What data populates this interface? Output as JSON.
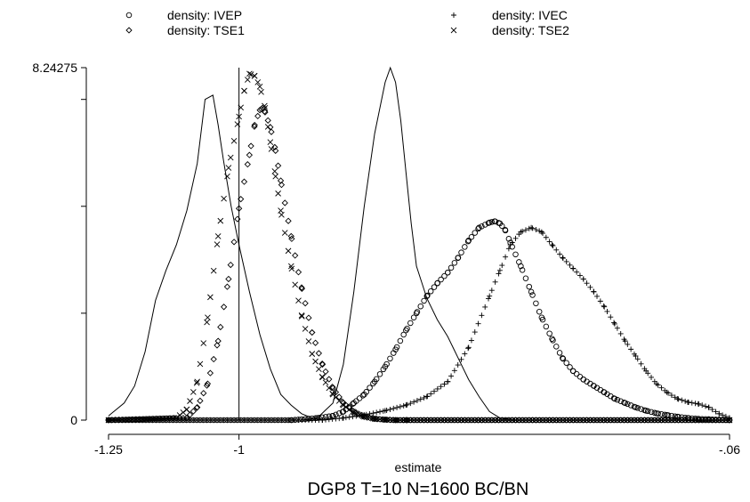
{
  "chart_data": {
    "type": "line",
    "title": "DGP8 T=10 N=1600 BC/BN",
    "xlabel": "estimate",
    "ylabel": "",
    "xlim": [
      -1.25,
      -0.06
    ],
    "ylim": [
      0,
      8.24275
    ],
    "x_tick_labels": [
      {
        "value": -1.25,
        "label": "-1.25"
      },
      {
        "value": -1.0,
        "label": "-1"
      },
      {
        "value": -0.06,
        "label": "-.06"
      }
    ],
    "y_tick_labels": [
      {
        "value": 0,
        "label": "0"
      },
      {
        "value": 8.24275,
        "label": "8.24275"
      }
    ],
    "y_minor_ticks": [
      2.5,
      5.0,
      7.5
    ],
    "reference_line_x": -1.0,
    "legend": {
      "placement": "top",
      "entries": [
        {
          "series": "IVEP",
          "label": "density: IVEP",
          "marker": "circle"
        },
        {
          "series": "IVEC",
          "label": "density: IVEC",
          "marker": "plus"
        },
        {
          "series": "TSE1",
          "label": "density: TSE1",
          "marker": "diamond"
        },
        {
          "series": "TSE2",
          "label": "density: TSE2",
          "marker": "x"
        }
      ]
    },
    "series": [
      {
        "name": "",
        "style": "line",
        "x": [
          -1.25,
          -1.22,
          -1.2,
          -1.18,
          -1.16,
          -1.14,
          -1.12,
          -1.1,
          -1.08,
          -1.065,
          -1.05,
          -1.04,
          -1.03,
          -1.015,
          -1.0,
          -0.98,
          -0.96,
          -0.94,
          -0.92,
          -0.9,
          -0.88,
          -0.86,
          -0.84
        ],
        "y": [
          0.1,
          0.4,
          0.8,
          1.6,
          2.8,
          3.5,
          4.1,
          4.9,
          6.0,
          7.5,
          7.6,
          6.9,
          6.1,
          5.0,
          4.1,
          3.0,
          2.0,
          1.2,
          0.6,
          0.35,
          0.15,
          0.05,
          0.0
        ]
      },
      {
        "name": "",
        "style": "line",
        "x": [
          -0.88,
          -0.85,
          -0.82,
          -0.8,
          -0.78,
          -0.76,
          -0.74,
          -0.72,
          -0.71,
          -0.7,
          -0.69,
          -0.68,
          -0.67,
          -0.66,
          -0.64,
          -0.62,
          -0.6,
          -0.58,
          -0.56,
          -0.54,
          -0.52,
          -0.5,
          -0.47
        ],
        "y": [
          0.0,
          0.05,
          0.4,
          1.3,
          3.0,
          5.0,
          6.7,
          7.9,
          8.24,
          7.9,
          7.0,
          5.8,
          4.6,
          3.6,
          2.85,
          2.35,
          1.95,
          1.45,
          0.95,
          0.55,
          0.2,
          0.05,
          0.0
        ]
      },
      {
        "name": "IVEP",
        "style": "circle",
        "x": [
          -1.25,
          -0.9,
          -0.85,
          -0.82,
          -0.8,
          -0.78,
          -0.76,
          -0.74,
          -0.72,
          -0.7,
          -0.68,
          -0.66,
          -0.64,
          -0.62,
          -0.6,
          -0.58,
          -0.56,
          -0.54,
          -0.52,
          -0.51,
          -0.5,
          -0.49,
          -0.48,
          -0.46,
          -0.44,
          -0.42,
          -0.4,
          -0.38,
          -0.36,
          -0.34,
          -0.32,
          -0.3,
          -0.28,
          -0.26,
          -0.24,
          -0.22,
          -0.2,
          -0.18,
          -0.16,
          -0.14,
          -0.12,
          -0.1,
          -0.08,
          -0.06
        ],
        "y": [
          0.0,
          0.0,
          0.05,
          0.1,
          0.2,
          0.4,
          0.6,
          0.9,
          1.25,
          1.65,
          2.1,
          2.5,
          2.9,
          3.2,
          3.45,
          3.8,
          4.2,
          4.5,
          4.62,
          4.65,
          4.6,
          4.45,
          4.15,
          3.6,
          3.0,
          2.4,
          1.9,
          1.45,
          1.15,
          0.95,
          0.8,
          0.65,
          0.5,
          0.4,
          0.3,
          0.22,
          0.16,
          0.12,
          0.08,
          0.05,
          0.03,
          0.02,
          0.01,
          0.0
        ]
      },
      {
        "name": "IVEC",
        "style": "plus",
        "x": [
          -1.25,
          -0.84,
          -0.8,
          -0.76,
          -0.72,
          -0.68,
          -0.64,
          -0.6,
          -0.56,
          -0.52,
          -0.5,
          -0.48,
          -0.46,
          -0.44,
          -0.42,
          -0.4,
          -0.38,
          -0.36,
          -0.34,
          -0.32,
          -0.3,
          -0.28,
          -0.26,
          -0.24,
          -0.22,
          -0.2,
          -0.18,
          -0.16,
          -0.14,
          -0.12,
          -0.1,
          -0.08,
          -0.06
        ],
        "y": [
          0.0,
          0.0,
          0.05,
          0.12,
          0.22,
          0.35,
          0.55,
          0.9,
          1.7,
          2.9,
          3.5,
          4.1,
          4.4,
          4.5,
          4.4,
          4.1,
          3.8,
          3.55,
          3.3,
          3.0,
          2.65,
          2.25,
          1.85,
          1.5,
          1.15,
          0.85,
          0.65,
          0.5,
          0.42,
          0.38,
          0.3,
          0.15,
          0.05
        ]
      },
      {
        "name": "TSE1",
        "style": "diamond",
        "x": [
          -1.25,
          -1.1,
          -1.08,
          -1.06,
          -1.04,
          -1.02,
          -1.0,
          -0.98,
          -0.97,
          -0.96,
          -0.955,
          -0.95,
          -0.94,
          -0.93,
          -0.92,
          -0.9,
          -0.88,
          -0.86,
          -0.84,
          -0.82,
          -0.8,
          -0.78,
          -0.76,
          -0.74,
          -0.72,
          -0.7,
          -0.68,
          -0.06
        ],
        "y": [
          0.0,
          0.05,
          0.3,
          0.85,
          1.85,
          3.3,
          4.95,
          6.2,
          6.9,
          7.25,
          7.3,
          7.2,
          6.85,
          6.3,
          5.6,
          4.3,
          3.1,
          2.05,
          1.3,
          0.75,
          0.4,
          0.2,
          0.08,
          0.03,
          0.01,
          0.0,
          0.0,
          0.0
        ]
      },
      {
        "name": "TSE2",
        "style": "x",
        "x": [
          -1.25,
          -1.12,
          -1.1,
          -1.08,
          -1.06,
          -1.04,
          -1.02,
          -1.0,
          -0.99,
          -0.98,
          -0.97,
          -0.96,
          -0.95,
          -0.94,
          -0.93,
          -0.92,
          -0.9,
          -0.88,
          -0.86,
          -0.84,
          -0.82,
          -0.8,
          -0.78,
          -0.76,
          -0.74,
          -0.72,
          -0.7,
          -0.68,
          -0.06
        ],
        "y": [
          0.0,
          0.05,
          0.25,
          0.9,
          2.4,
          4.3,
          5.9,
          7.1,
          7.7,
          8.1,
          8.05,
          7.8,
          7.3,
          6.5,
          5.7,
          4.9,
          3.6,
          2.45,
          1.55,
          1.0,
          0.6,
          0.35,
          0.18,
          0.08,
          0.03,
          0.01,
          0.0,
          0.0,
          0.0
        ]
      }
    ]
  }
}
